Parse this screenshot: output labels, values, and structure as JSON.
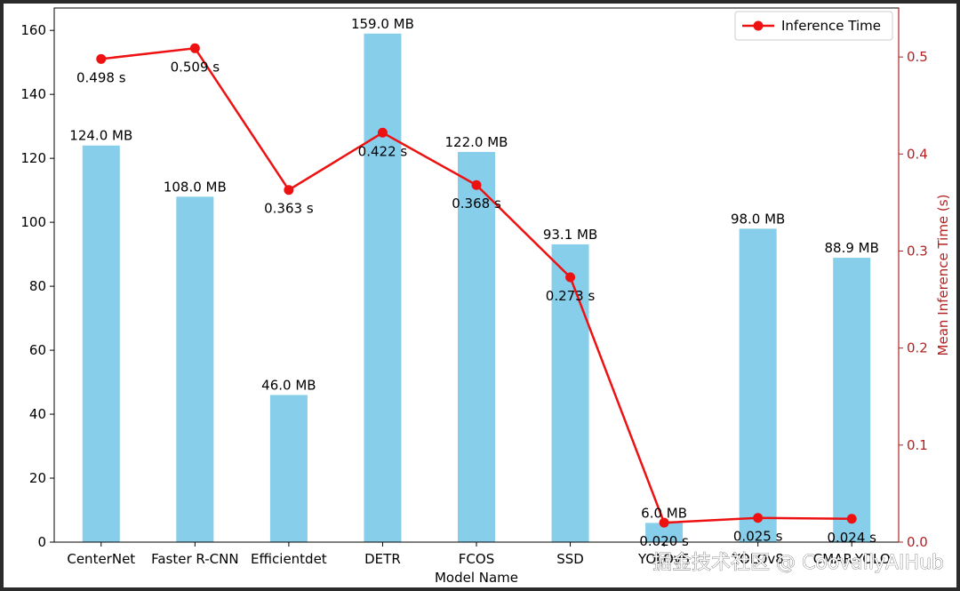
{
  "chart_data": {
    "type": "bar",
    "categories": [
      "CenterNet",
      "Faster R-CNN",
      "Efficientdet",
      "DETR",
      "FCOS",
      "SSD",
      "YOLOv5",
      "YOLOv8",
      "CMAR-YOLO"
    ],
    "bar_series": {
      "values": [
        124.0,
        108.0,
        46.0,
        159.0,
        122.0,
        93.1,
        6.0,
        98.0,
        88.9
      ],
      "labels": [
        "124.0 MB",
        "108.0 MB",
        "46.0 MB",
        "159.0 MB",
        "122.0 MB",
        "93.1 MB",
        "6.0 MB",
        "98.0 MB",
        "88.9 MB"
      ],
      "color": "#87ceeb"
    },
    "line_series": {
      "name": "Inference Time",
      "values": [
        0.498,
        0.509,
        0.363,
        0.422,
        0.368,
        0.273,
        0.02,
        0.025,
        0.024
      ],
      "labels": [
        "0.498 s",
        "0.509 s",
        "0.363 s",
        "0.422 s",
        "0.368 s",
        "0.273 s",
        "0.020 s",
        "0.025 s",
        "0.024 s"
      ],
      "color": "#ee1111"
    },
    "xlabel": "Model Name",
    "ylabel": "",
    "y2label": "Mean Inference Time (s)",
    "ylim": [
      0,
      167
    ],
    "y2lim": [
      0,
      0.5505
    ],
    "yticks": [
      0,
      20,
      40,
      60,
      80,
      100,
      120,
      140,
      160
    ],
    "y2ticks": [
      0.0,
      0.1,
      0.2,
      0.3,
      0.4,
      0.5
    ],
    "y2tick_labels": [
      "0.0",
      "0.1",
      "0.2",
      "0.3",
      "0.4",
      "0.5"
    ],
    "y2_axis_color": "#b22222",
    "legend_position": "top-right",
    "grid": false
  },
  "watermark": "掘金技术社区 @ CoovallyAIHub"
}
